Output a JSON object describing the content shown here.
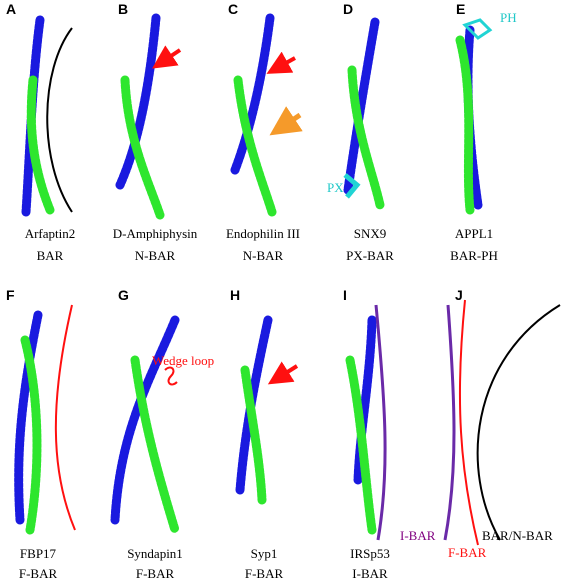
{
  "panels": [
    {
      "letter": "A",
      "name": "Arfaptin2",
      "family": "BAR"
    },
    {
      "letter": "B",
      "name": "D-Amphiphysin",
      "family": "N-BAR"
    },
    {
      "letter": "C",
      "name": "Endophilin III",
      "family": "N-BAR"
    },
    {
      "letter": "D",
      "name": "SNX9",
      "family": "PX-BAR"
    },
    {
      "letter": "E",
      "name": "APPL1",
      "family": "BAR-PH"
    },
    {
      "letter": "F",
      "name": "FBP17",
      "family": "F-BAR"
    },
    {
      "letter": "G",
      "name": "Syndapin1",
      "family": "F-BAR"
    },
    {
      "letter": "H",
      "name": "Syp1",
      "family": "F-BAR"
    },
    {
      "letter": "I",
      "name": "IRSp53",
      "family": "I-BAR"
    },
    {
      "letter": "J"
    }
  ],
  "annotations": {
    "ph": "PH",
    "px": "PX",
    "wedge_loop": "Wedge loop",
    "i_bar": "I-BAR",
    "f_bar": "F-BAR",
    "bar_n_bar": "BAR/N-BAR"
  }
}
